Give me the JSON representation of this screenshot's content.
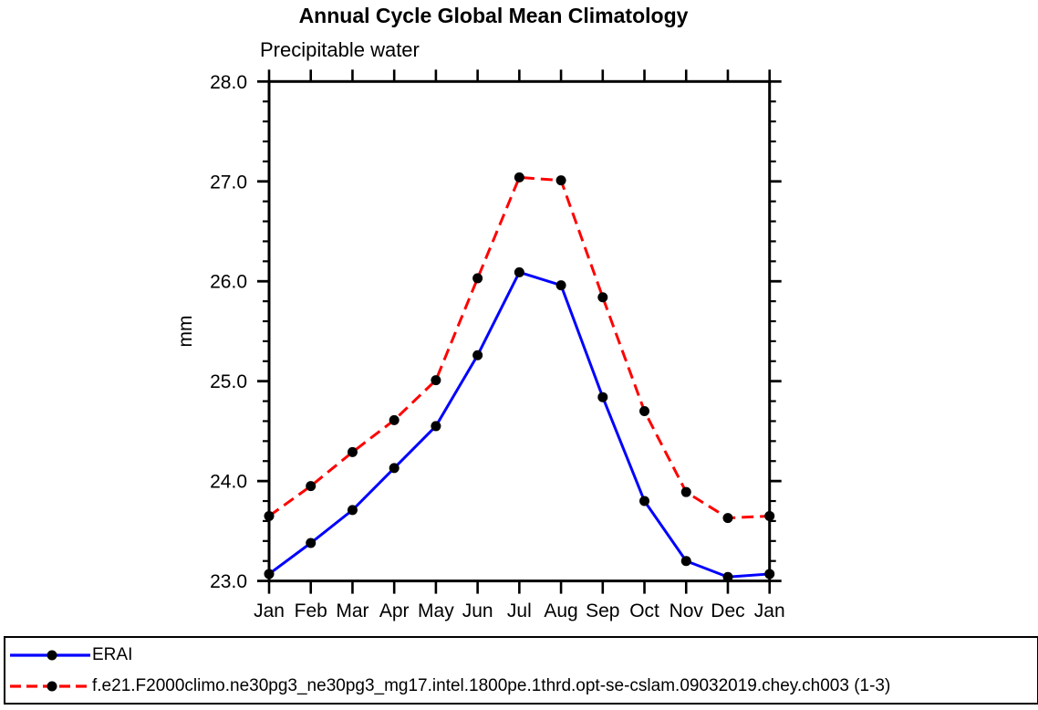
{
  "chart_data": {
    "type": "line",
    "title": "Annual Cycle Global Mean Climatology",
    "subtitle": "Precipitable water",
    "xlabel": "",
    "ylabel": "mm",
    "categories": [
      "Jan",
      "Feb",
      "Mar",
      "Apr",
      "May",
      "Jun",
      "Jul",
      "Aug",
      "Sep",
      "Oct",
      "Nov",
      "Dec",
      "Jan"
    ],
    "series": [
      {
        "name": "ERAI",
        "color": "#0000ff",
        "line_style": "solid",
        "marker": "filled-circle",
        "marker_color": "#000000",
        "values": [
          23.07,
          23.38,
          23.71,
          24.13,
          24.55,
          25.26,
          26.09,
          25.96,
          24.84,
          23.8,
          23.2,
          23.04,
          23.07
        ]
      },
      {
        "name": "f.e21.F2000climo.ne30pg3_ne30pg3_mg17.intel.1800pe.1thrd.opt-se-cslam.09032019.chey.ch003 (1-3)",
        "color": "#ff0000",
        "line_style": "dashed",
        "marker": "filled-circle",
        "marker_color": "#000000",
        "values": [
          23.65,
          23.95,
          24.29,
          24.61,
          25.01,
          26.03,
          27.04,
          27.01,
          25.84,
          24.7,
          23.89,
          23.63,
          23.65
        ]
      }
    ],
    "ylim": [
      23.0,
      28.0
    ],
    "ytick_labels": [
      "23.0",
      "24.0",
      "25.0",
      "26.0",
      "27.0",
      "28.0"
    ],
    "minor_tick_interval": 0.2,
    "grid": false,
    "axis_color": "#000000",
    "legend_position": "bottom-box"
  }
}
